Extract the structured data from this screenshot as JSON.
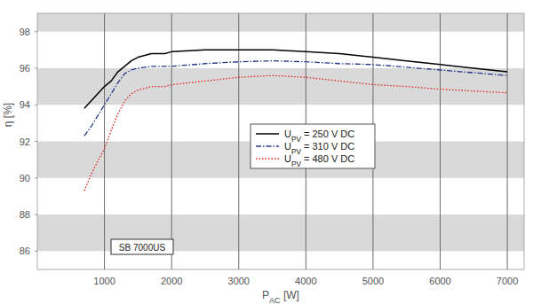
{
  "chart_data": {
    "type": "line",
    "xlabel": "PAC [W]",
    "ylabel": "η [%]",
    "annotation": "SB 7000US",
    "x": [
      700,
      800,
      900,
      1000,
      1100,
      1200,
      1300,
      1400,
      1500,
      1600,
      1700,
      1800,
      1900,
      2000,
      2500,
      3000,
      3500,
      4000,
      4500,
      5000,
      5500,
      6000,
      6500,
      7000
    ],
    "series": [
      {
        "name": "UPV = 250 V DC",
        "color": "#000000",
        "line_style": "solid",
        "values": [
          93.8,
          94.2,
          94.6,
          95.0,
          95.3,
          95.8,
          96.1,
          96.4,
          96.6,
          96.7,
          96.8,
          96.8,
          96.8,
          96.9,
          97.0,
          97.0,
          97.0,
          96.9,
          96.8,
          96.6,
          96.4,
          96.2,
          96.0,
          95.8
        ]
      },
      {
        "name": "UPV = 310 V DC",
        "color": "#25358a",
        "line_style": "dashdot",
        "values": [
          92.3,
          92.8,
          93.4,
          94.0,
          94.6,
          95.2,
          95.7,
          95.9,
          96.0,
          96.05,
          96.1,
          96.1,
          96.1,
          96.1,
          96.25,
          96.35,
          96.4,
          96.35,
          96.25,
          96.2,
          96.05,
          95.9,
          95.75,
          95.6
        ]
      },
      {
        "name": "UPV = 480 V DC",
        "color": "#e2231a",
        "line_style": "dotted",
        "values": [
          89.3,
          90.2,
          90.9,
          91.6,
          92.6,
          93.5,
          94.2,
          94.6,
          94.8,
          94.9,
          95.0,
          95.0,
          95.0,
          95.1,
          95.3,
          95.5,
          95.6,
          95.5,
          95.3,
          95.1,
          95.0,
          94.85,
          94.75,
          94.65
        ]
      }
    ],
    "xlim": [
      0,
      7250
    ],
    "ylim": [
      85,
      99
    ],
    "xticks": [
      1000,
      2000,
      3000,
      4000,
      5000,
      6000,
      7000
    ],
    "yticks": [
      86,
      88,
      90,
      92,
      94,
      96,
      98
    ],
    "grid": true,
    "legend": "center"
  }
}
